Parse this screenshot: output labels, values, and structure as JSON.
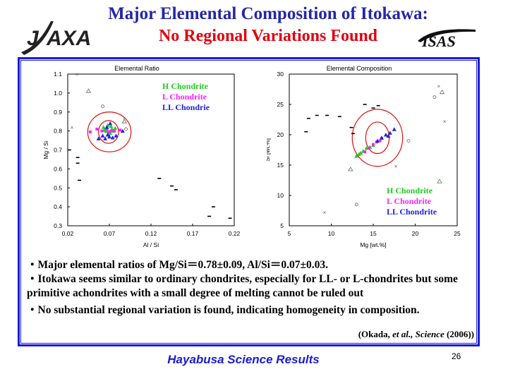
{
  "slide": {
    "title_line1": "Major Elemental Composition of Itokawa:",
    "title_line2": "No Regional Variations Found",
    "bullets": [
      "・Major elemental ratios of Mg/Si＝0.78±0.09, Al/Si＝0.07±0.03.",
      "・Itokawa seems similar to ordinary chondrites, especially for LL- or L-chondrites but some primitive achondrites with a small degree of melting cannot be ruled out",
      "・No substantial regional variation is found, indicating homogeneity in composition."
    ],
    "citation": {
      "prefix": "(Okada, ",
      "etal": "et al., ",
      "journal": "Science",
      "suffix": " (2006))"
    },
    "footer": "Hayabusa Science Results",
    "page_number": "26",
    "logos": {
      "left": "JAXA",
      "right": "ISAS"
    },
    "colors": {
      "title": "#2626a6",
      "subtitle": "#e0000f",
      "frame": "#1b1bd6",
      "h_chondrite": "#22cc22",
      "l_chondrite": "#ff22ff",
      "ll_chondrite": "#2222dd",
      "ellipse": "#e01010"
    }
  },
  "chart_data": [
    {
      "type": "scatter",
      "title": "Elemental Ratio",
      "xlabel": "Al / Si",
      "ylabel": "Mg / Si",
      "xlim": [
        0.02,
        0.22
      ],
      "ylim": [
        0.3,
        1.1
      ],
      "xticks": [
        "0.02",
        "0.07",
        "0.12",
        "0.17",
        "0.22"
      ],
      "yticks": [
        "0.3",
        "0.4",
        "0.5",
        "0.6",
        "0.7",
        "0.8",
        "0.9",
        "1.0",
        "1.1"
      ],
      "legend": [
        "H Chondrite",
        "L Chondrite",
        "LL Chondrie"
      ],
      "legend_position": "top-right",
      "series": [
        {
          "name": "H Chondrite",
          "color": "#22cc22",
          "points": [
            [
              0.063,
              0.82
            ],
            [
              0.066,
              0.8
            ],
            [
              0.068,
              0.83
            ],
            [
              0.071,
              0.79
            ],
            [
              0.073,
              0.81
            ],
            [
              0.069,
              0.785
            ],
            [
              0.075,
              0.8
            ],
            [
              0.077,
              0.815
            ],
            [
              0.064,
              0.805
            ],
            [
              0.072,
              0.825
            ]
          ]
        },
        {
          "name": "L Chondrite",
          "color": "#ff22ff",
          "points": [
            [
              0.047,
              0.795
            ],
            [
              0.055,
              0.81
            ],
            [
              0.061,
              0.8
            ],
            [
              0.067,
              0.81
            ],
            [
              0.069,
              0.795
            ],
            [
              0.072,
              0.8
            ],
            [
              0.076,
              0.8
            ],
            [
              0.083,
              0.805
            ]
          ]
        },
        {
          "name": "LL Chondrie",
          "color": "#2222dd",
          "points": [
            [
              0.057,
              0.76
            ],
            [
              0.062,
              0.775
            ],
            [
              0.065,
              0.76
            ],
            [
              0.068,
              0.78
            ],
            [
              0.07,
              0.77
            ],
            [
              0.074,
              0.765
            ],
            [
              0.067,
              0.82
            ],
            [
              0.071,
              0.84
            ],
            [
              0.078,
              0.775
            ],
            [
              0.086,
              0.8
            ]
          ]
        },
        {
          "name": "",
          "color": "#000000",
          "points": [
            [
              0.022,
              0.7
            ],
            [
              0.032,
              0.66
            ],
            [
              0.032,
              0.63
            ],
            [
              0.034,
              0.54
            ],
            [
              0.13,
              0.55
            ],
            [
              0.145,
              0.51
            ],
            [
              0.15,
              0.49
            ],
            [
              0.19,
              0.35
            ],
            [
              0.195,
              0.4
            ],
            [
              0.215,
              0.34
            ]
          ]
        }
      ],
      "open_markers": [
        [
          0.031,
          1.1
        ],
        [
          0.045,
          1.01
        ],
        [
          0.062,
          0.93
        ],
        [
          0.025,
          0.82
        ],
        [
          0.088,
          0.85
        ],
        [
          0.09,
          0.81
        ],
        [
          0.088,
          0.87
        ]
      ],
      "ellipses": [
        {
          "center": [
            0.069,
            0.795
          ],
          "rx": 0.012,
          "ry": 0.06
        },
        {
          "center": [
            0.07,
            0.795
          ],
          "rx": 0.026,
          "ry": 0.105
        }
      ]
    },
    {
      "type": "scatter",
      "title": "Elemental Composition",
      "xlabel": "Mg [wt.%]",
      "ylabel": "Si [wt.%]",
      "xlim": [
        5,
        25
      ],
      "ylim": [
        5,
        30
      ],
      "xticks": [
        "5",
        "10",
        "15",
        "20",
        "25"
      ],
      "yticks": [
        "5",
        "10",
        "15",
        "20",
        "25",
        "30"
      ],
      "legend": [
        "H Chondrite",
        "L Chondrite",
        "LL Chondrite"
      ],
      "legend_position": "bottom-right",
      "series": [
        {
          "name": "H Chondrite",
          "color": "#22cc22",
          "points": [
            [
              13.0,
              16.5
            ],
            [
              13.5,
              17.0
            ],
            [
              13.8,
              17.3
            ],
            [
              14.2,
              17.8
            ],
            [
              14.6,
              18.0
            ],
            [
              15.0,
              18.3
            ],
            [
              13.3,
              16.8
            ]
          ]
        },
        {
          "name": "L Chondrite",
          "color": "#ff22ff",
          "points": [
            [
              14.0,
              17.2
            ],
            [
              14.5,
              17.8
            ],
            [
              15.0,
              18.4
            ],
            [
              15.4,
              18.8
            ],
            [
              15.8,
              19.0
            ],
            [
              16.0,
              19.4
            ]
          ]
        },
        {
          "name": "LL Chondrite",
          "color": "#2222dd",
          "points": [
            [
              15.5,
              19.0
            ],
            [
              16.0,
              19.5
            ],
            [
              16.5,
              20.0
            ],
            [
              17.0,
              20.3
            ],
            [
              17.5,
              20.9
            ],
            [
              16.8,
              19.8
            ]
          ]
        },
        {
          "name": "",
          "color": "#000000",
          "points": [
            [
              7.0,
              20.5
            ],
            [
              7.3,
              22.7
            ],
            [
              8.3,
              23.2
            ],
            [
              9.5,
              23.2
            ],
            [
              11.0,
              23.0
            ],
            [
              12.4,
              21.2
            ],
            [
              12.6,
              20.2
            ],
            [
              14.0,
              25.0
            ],
            [
              15.0,
              24.4
            ],
            [
              15.6,
              24.8
            ]
          ]
        }
      ],
      "open_markers": [
        [
          22.8,
          28.0
        ],
        [
          23.2,
          27.0
        ],
        [
          22.3,
          26.2
        ],
        [
          23.5,
          22.2
        ],
        [
          22.9,
          12.3
        ],
        [
          19.2,
          19.0
        ],
        [
          17.7,
          14.8
        ],
        [
          12.3,
          14.3
        ],
        [
          13.0,
          8.5
        ],
        [
          9.2,
          7.2
        ]
      ],
      "ellipses": [
        {
          "center": [
            15.5,
            19.5
          ],
          "rx": 1.4,
          "ry": 2.6
        },
        {
          "center": [
            15.5,
            19.5
          ],
          "rx": 3.0,
          "ry": 4.7
        }
      ]
    }
  ]
}
